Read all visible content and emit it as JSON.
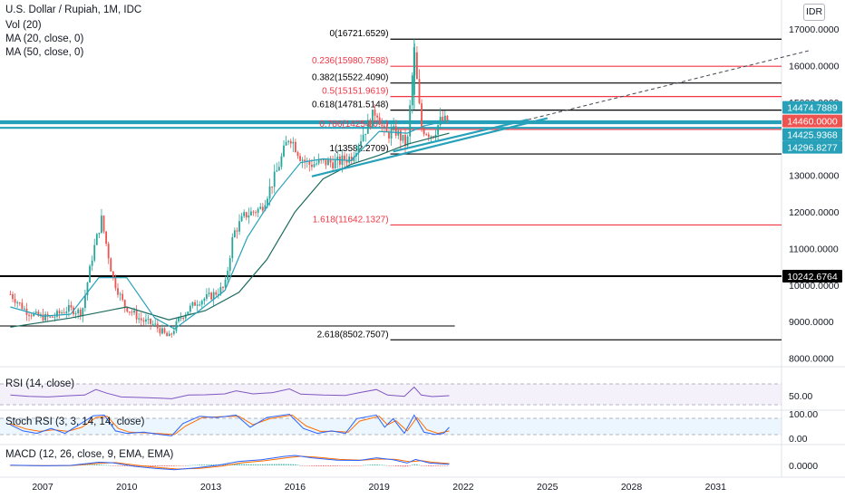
{
  "header": {
    "title": "U.S. Dollar / Rupiah, 1M, IDC",
    "indicators": [
      "Vol (20)",
      "MA (20, close, 0)",
      "MA (50, close, 0)"
    ],
    "currency": "IDR"
  },
  "colors": {
    "up": "#26a69a",
    "down": "#ef5350",
    "fib_main": "#000000",
    "fib_red": "#f23645",
    "ma20": "#26a1b9",
    "ma50": "#1b6b5f",
    "hline": "#26a1b9",
    "rsi_line": "#7e57c2",
    "stoch_k": "#2962ff",
    "stoch_d": "#ff6d00",
    "macd": "#2962ff",
    "signal": "#ff6d00"
  },
  "panels": {
    "rsi": {
      "label": "RSI (14, close)",
      "ticks": [
        "50.00"
      ]
    },
    "stoch": {
      "label": "Stoch RSI (3, 3, 14, 14, close)",
      "ticks": [
        "100.00",
        "0.00"
      ]
    },
    "macd": {
      "label": "MACD (12, 26, close, 9, EMA, EMA)",
      "ticks": [
        "0.0000"
      ]
    }
  },
  "chart_data": {
    "type": "candlestick",
    "title": "U.S. Dollar / Rupiah, 1M, IDC",
    "ylim": [
      7600,
      17400
    ],
    "price_ticks": [
      {
        "v": 17000,
        "label": "17000.0000"
      },
      {
        "v": 16000,
        "label": "16000.0000"
      },
      {
        "v": 15000,
        "label": "15000.0000"
      },
      {
        "v": 14000,
        "label": "14000.0000"
      },
      {
        "v": 13000,
        "label": "13000.0000"
      },
      {
        "v": 12000,
        "label": "12000.0000"
      },
      {
        "v": 11000,
        "label": "11000.0000"
      },
      {
        "v": 10000,
        "label": "10000.0000"
      },
      {
        "v": 9000,
        "label": "9000.0000"
      },
      {
        "v": 8000,
        "label": "8000.0000"
      }
    ],
    "x_ticks": [
      "2007",
      "2010",
      "2013",
      "2016",
      "2019",
      "2022",
      "2025",
      "2028",
      "2031"
    ],
    "x_tick_years": [
      2007,
      2010,
      2013,
      2016,
      2019,
      2022,
      2025,
      2028,
      2031
    ],
    "fib_levels": [
      {
        "label": "0(16721.6529)",
        "value": 16721.6529,
        "style": "main"
      },
      {
        "label": "0.236(15980.7588)",
        "value": 15980.7588,
        "style": "red"
      },
      {
        "label": "0.382(15522.4090)",
        "value": 15522.409,
        "style": "main"
      },
      {
        "label": "0.5(15151.9619)",
        "value": 15151.9619,
        "style": "red"
      },
      {
        "label": "0.618(14781.5148)",
        "value": 14781.5148,
        "style": "main"
      },
      {
        "label": "0.786(14254.0...)",
        "value": 14254.0,
        "style": "red"
      },
      {
        "label": "1(13582.2709)",
        "value": 13582.2709,
        "style": "main"
      },
      {
        "label": "1.618(11642.1327)",
        "value": 11642.1327,
        "style": "red"
      },
      {
        "label": "2.618(8502.7507)",
        "value": 8502.7507,
        "style": "main"
      }
    ],
    "price_labels": [
      {
        "label": "14474.7889",
        "value": 14474.7889,
        "color": "#26a1b9"
      },
      {
        "label": "14460.0000",
        "value": 14460.0,
        "color": "#ef5350"
      },
      {
        "label": "14425.9368",
        "value": 14425.9368,
        "color": "#26a1b9"
      },
      {
        "label": "14296.8277",
        "value": 14296.8277,
        "color": "#26a1b9"
      },
      {
        "label": "10242.6764",
        "value": 10242.6764,
        "color": "#000000"
      }
    ],
    "horizontal_lines": [
      {
        "value": 14474.7889,
        "style": "cyan"
      },
      {
        "value": 14425.9368,
        "style": "cyan"
      },
      {
        "value": 14296.8277,
        "style": "cyan"
      },
      {
        "value": 10242.6764,
        "style": "black"
      },
      {
        "value": 8880,
        "style": "thin",
        "x_end": 2021.7
      }
    ],
    "trendlines": [
      {
        "from": [
          2016.6,
          12970
        ],
        "to": [
          2025.0,
          14560
        ],
        "style": "solid"
      },
      {
        "from": [
          2019.5,
          13650
        ],
        "to": [
          2024.3,
          14520
        ],
        "style": "solid"
      },
      {
        "from": [
          2024.3,
          14520
        ],
        "to": [
          2034.4,
          16420
        ],
        "style": "dashed"
      }
    ],
    "candle_anchors": [
      [
        2005.85,
        9750
      ],
      [
        2006.4,
        9300
      ],
      [
        2006.8,
        9150
      ],
      [
        2007.3,
        9100
      ],
      [
        2007.9,
        9350
      ],
      [
        2008.4,
        9250
      ],
      [
        2008.8,
        10900
      ],
      [
        2009.1,
        11800
      ],
      [
        2009.5,
        10200
      ],
      [
        2009.9,
        9450
      ],
      [
        2010.5,
        9050
      ],
      [
        2011.0,
        8900
      ],
      [
        2011.5,
        8550
      ],
      [
        2011.9,
        9100
      ],
      [
        2012.5,
        9550
      ],
      [
        2013.0,
        9700
      ],
      [
        2013.5,
        9950
      ],
      [
        2013.8,
        11400
      ],
      [
        2014.2,
        11900
      ],
      [
        2014.8,
        12100
      ],
      [
        2015.3,
        13000
      ],
      [
        2015.8,
        14100
      ],
      [
        2016.2,
        13500
      ],
      [
        2016.5,
        13300
      ],
      [
        2017.0,
        13350
      ],
      [
        2017.5,
        13350
      ],
      [
        2018.0,
        13500
      ],
      [
        2018.4,
        14100
      ],
      [
        2018.9,
        14800
      ],
      [
        2019.2,
        14100
      ],
      [
        2019.6,
        14200
      ],
      [
        2020.0,
        13800
      ],
      [
        2020.25,
        16400
      ],
      [
        2020.5,
        14300
      ],
      [
        2020.9,
        14100
      ],
      [
        2021.2,
        14500
      ],
      [
        2021.5,
        14460
      ]
    ],
    "ma20_points": [
      [
        2005.85,
        9400
      ],
      [
        2007.0,
        9150
      ],
      [
        2008.0,
        9200
      ],
      [
        2009.0,
        10200
      ],
      [
        2010.0,
        10200
      ],
      [
        2011.0,
        9100
      ],
      [
        2011.7,
        8800
      ],
      [
        2012.5,
        9250
      ],
      [
        2013.5,
        9850
      ],
      [
        2014.3,
        11300
      ],
      [
        2015.3,
        12500
      ],
      [
        2016.2,
        13350
      ],
      [
        2017.0,
        13450
      ],
      [
        2018.0,
        13400
      ],
      [
        2019.0,
        14200
      ],
      [
        2020.0,
        14150
      ],
      [
        2020.6,
        14350
      ],
      [
        2021.5,
        14500
      ]
    ],
    "ma50_points": [
      [
        2005.85,
        8850
      ],
      [
        2008.0,
        9100
      ],
      [
        2010.0,
        9400
      ],
      [
        2011.5,
        9050
      ],
      [
        2012.8,
        9300
      ],
      [
        2014.0,
        9800
      ],
      [
        2015.0,
        10700
      ],
      [
        2016.0,
        12000
      ],
      [
        2017.0,
        12900
      ],
      [
        2018.0,
        13300
      ],
      [
        2019.0,
        13550
      ],
      [
        2020.0,
        13850
      ],
      [
        2021.5,
        14150
      ]
    ],
    "rsi_points": [
      [
        2005.85,
        52
      ],
      [
        2006.5,
        48
      ],
      [
        2007.2,
        46
      ],
      [
        2007.8,
        49
      ],
      [
        2008.5,
        52
      ],
      [
        2008.9,
        70
      ],
      [
        2009.3,
        58
      ],
      [
        2009.8,
        46
      ],
      [
        2010.5,
        44
      ],
      [
        2011.2,
        42
      ],
      [
        2011.6,
        40
      ],
      [
        2012.2,
        52
      ],
      [
        2012.8,
        53
      ],
      [
        2013.5,
        56
      ],
      [
        2013.9,
        66
      ],
      [
        2014.5,
        56
      ],
      [
        2015.2,
        60
      ],
      [
        2015.8,
        72
      ],
      [
        2016.2,
        55
      ],
      [
        2017.0,
        52
      ],
      [
        2017.8,
        51
      ],
      [
        2018.3,
        60
      ],
      [
        2018.9,
        70
      ],
      [
        2019.3,
        52
      ],
      [
        2019.9,
        48
      ],
      [
        2020.25,
        78
      ],
      [
        2020.5,
        52
      ],
      [
        2020.9,
        47
      ],
      [
        2021.5,
        50
      ]
    ],
    "stoch_k_points": [
      [
        2005.85,
        55
      ],
      [
        2006.3,
        30
      ],
      [
        2006.8,
        20
      ],
      [
        2007.3,
        40
      ],
      [
        2007.8,
        20
      ],
      [
        2008.3,
        55
      ],
      [
        2008.8,
        92
      ],
      [
        2009.2,
        95
      ],
      [
        2009.6,
        30
      ],
      [
        2010.0,
        20
      ],
      [
        2010.6,
        25
      ],
      [
        2011.2,
        15
      ],
      [
        2011.6,
        10
      ],
      [
        2012.0,
        60
      ],
      [
        2012.6,
        90
      ],
      [
        2013.2,
        85
      ],
      [
        2013.9,
        95
      ],
      [
        2014.4,
        45
      ],
      [
        2015.0,
        85
      ],
      [
        2015.8,
        98
      ],
      [
        2016.3,
        40
      ],
      [
        2016.8,
        20
      ],
      [
        2017.3,
        30
      ],
      [
        2017.8,
        20
      ],
      [
        2018.2,
        80
      ],
      [
        2018.9,
        95
      ],
      [
        2019.2,
        45
      ],
      [
        2019.5,
        80
      ],
      [
        2019.9,
        20
      ],
      [
        2020.25,
        95
      ],
      [
        2020.6,
        25
      ],
      [
        2021.0,
        15
      ],
      [
        2021.3,
        20
      ],
      [
        2021.5,
        45
      ]
    ],
    "stoch_d_points": [
      [
        2005.85,
        60
      ],
      [
        2006.4,
        38
      ],
      [
        2006.9,
        28
      ],
      [
        2007.4,
        35
      ],
      [
        2007.9,
        28
      ],
      [
        2008.4,
        45
      ],
      [
        2008.9,
        85
      ],
      [
        2009.3,
        90
      ],
      [
        2009.7,
        40
      ],
      [
        2010.1,
        25
      ],
      [
        2010.7,
        22
      ],
      [
        2011.3,
        18
      ],
      [
        2011.7,
        15
      ],
      [
        2012.1,
        50
      ],
      [
        2012.7,
        85
      ],
      [
        2013.3,
        88
      ],
      [
        2014.0,
        90
      ],
      [
        2014.5,
        55
      ],
      [
        2015.1,
        80
      ],
      [
        2015.9,
        95
      ],
      [
        2016.4,
        50
      ],
      [
        2016.9,
        28
      ],
      [
        2017.4,
        28
      ],
      [
        2017.9,
        25
      ],
      [
        2018.3,
        70
      ],
      [
        2019.0,
        90
      ],
      [
        2019.3,
        55
      ],
      [
        2019.6,
        72
      ],
      [
        2020.0,
        30
      ],
      [
        2020.35,
        85
      ],
      [
        2020.7,
        35
      ],
      [
        2021.1,
        20
      ],
      [
        2021.5,
        30
      ]
    ],
    "macd_points": [
      [
        2005.85,
        10
      ],
      [
        2007.0,
        -20
      ],
      [
        2008.0,
        0
      ],
      [
        2009.0,
        160
      ],
      [
        2009.5,
        130
      ],
      [
        2010.3,
        -50
      ],
      [
        2011.0,
        -150
      ],
      [
        2011.7,
        -220
      ],
      [
        2012.5,
        -120
      ],
      [
        2013.3,
        20
      ],
      [
        2014.0,
        200
      ],
      [
        2014.8,
        280
      ],
      [
        2015.6,
        450
      ],
      [
        2016.0,
        500
      ],
      [
        2016.6,
        380
      ],
      [
        2017.5,
        260
      ],
      [
        2018.3,
        250
      ],
      [
        2018.9,
        380
      ],
      [
        2019.5,
        280
      ],
      [
        2020.0,
        120
      ],
      [
        2020.3,
        300
      ],
      [
        2020.8,
        120
      ],
      [
        2021.5,
        60
      ]
    ],
    "signal_points": [
      [
        2005.85,
        0
      ],
      [
        2007.0,
        -15
      ],
      [
        2008.0,
        -10
      ],
      [
        2009.0,
        100
      ],
      [
        2009.6,
        140
      ],
      [
        2010.4,
        0
      ],
      [
        2011.1,
        -100
      ],
      [
        2011.8,
        -180
      ],
      [
        2012.6,
        -150
      ],
      [
        2013.4,
        -30
      ],
      [
        2014.1,
        130
      ],
      [
        2014.9,
        230
      ],
      [
        2015.7,
        380
      ],
      [
        2016.2,
        460
      ],
      [
        2016.8,
        410
      ],
      [
        2017.6,
        300
      ],
      [
        2018.4,
        260
      ],
      [
        2019.0,
        320
      ],
      [
        2019.6,
        300
      ],
      [
        2020.1,
        180
      ],
      [
        2020.5,
        240
      ],
      [
        2020.9,
        160
      ],
      [
        2021.5,
        90
      ]
    ]
  }
}
